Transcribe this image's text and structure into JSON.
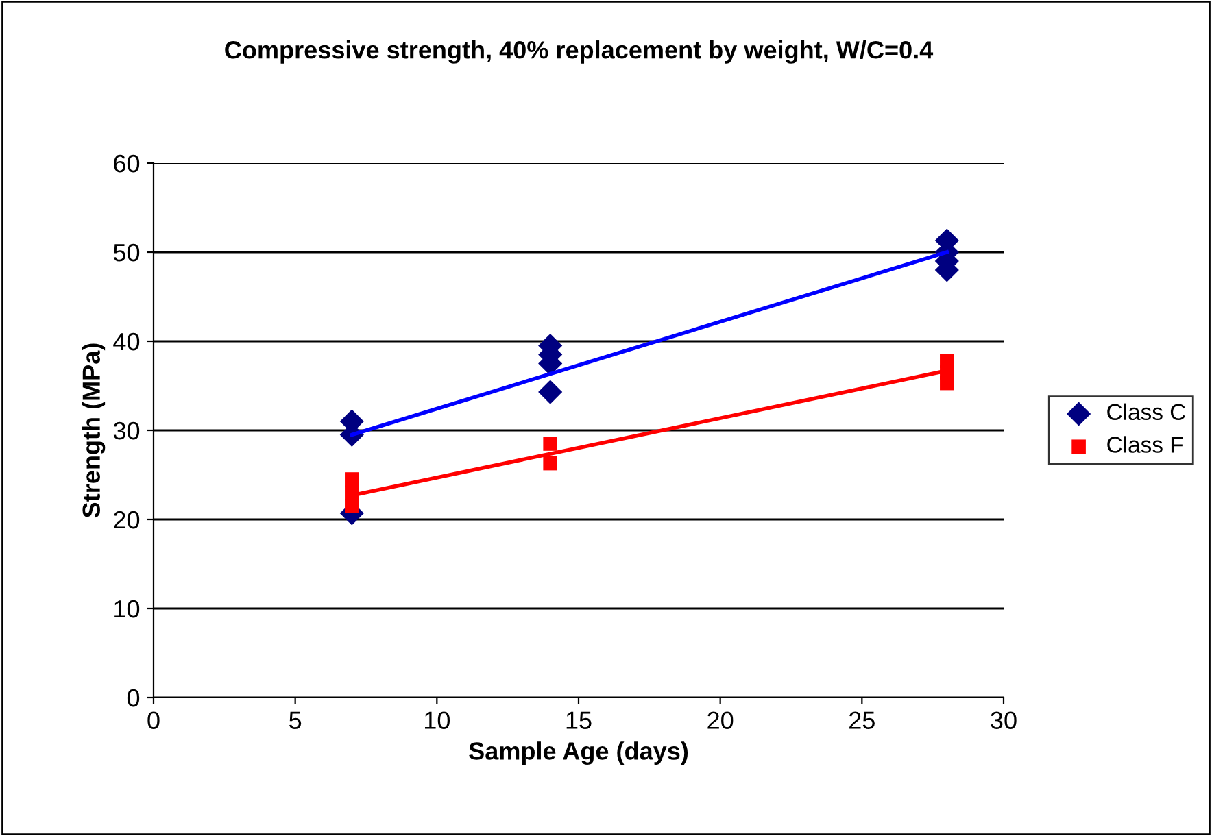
{
  "chart_data": {
    "type": "scatter",
    "title": "Compressive strength, 40% replacement by weight, W/C=0.4",
    "xlabel": "Sample Age (days)",
    "ylabel": "Strength (MPa)",
    "xlim": [
      0,
      30
    ],
    "xticks": [
      0,
      5,
      10,
      15,
      20,
      25,
      30
    ],
    "ylim": [
      0,
      60
    ],
    "yticks": [
      0,
      10,
      20,
      30,
      40,
      50,
      60
    ],
    "grid": "y",
    "legend": "right",
    "series": [
      {
        "name": "Class C",
        "color": "#000080",
        "marker": "diamond",
        "x": [
          7,
          7,
          7,
          14,
          14,
          14,
          14,
          28,
          28,
          28,
          28
        ],
        "values": [
          31,
          29.5,
          20.7,
          39.5,
          38.5,
          37.5,
          34.3,
          51.3,
          50,
          49,
          48
        ]
      },
      {
        "name": "Class F",
        "color": "#ff0000",
        "marker": "square",
        "x": [
          7,
          7,
          7,
          14,
          14,
          28,
          28,
          28
        ],
        "values": [
          24.5,
          23,
          21.5,
          28.5,
          26.3,
          37.8,
          36.5,
          35.3
        ]
      },
      {
        "type": "line",
        "color": "#0000ff",
        "marker": "none",
        "x": [
          7,
          28
        ],
        "values": [
          29.5,
          50
        ]
      },
      {
        "type": "line",
        "color": "#ff0000",
        "marker": "none",
        "x": [
          7,
          28
        ],
        "values": [
          22.7,
          36.7
        ]
      }
    ]
  }
}
